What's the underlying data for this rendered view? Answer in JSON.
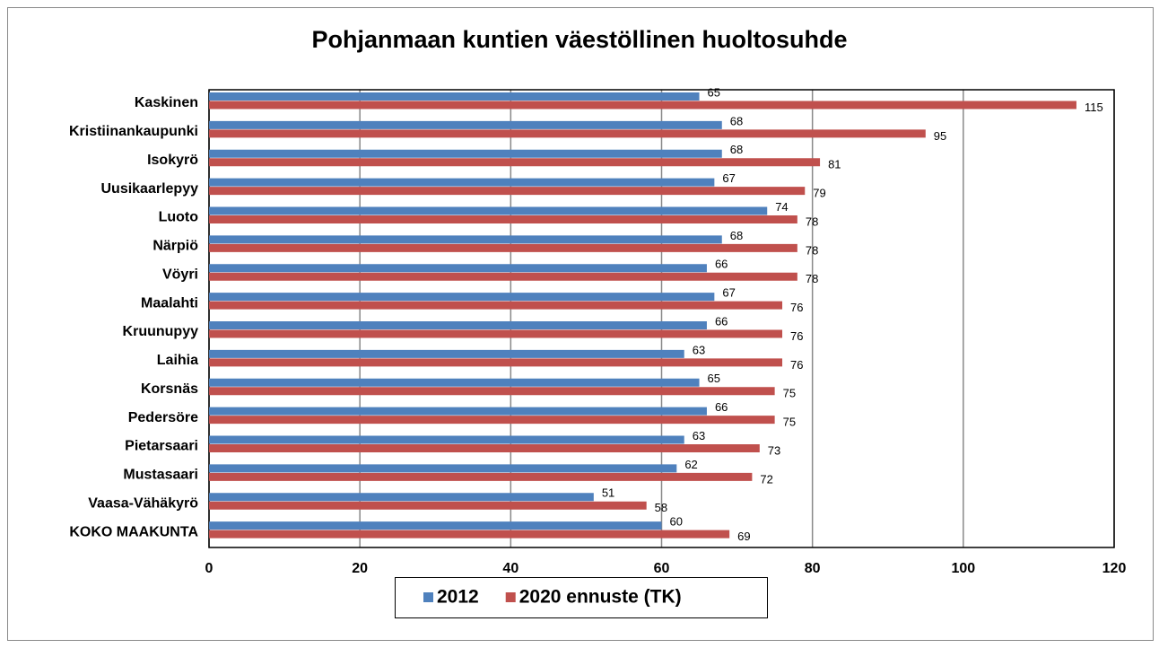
{
  "chart_data": {
    "type": "bar",
    "orientation": "horizontal",
    "title": "Pohjanmaan kuntien väestöllinen huoltosuhde",
    "categories": [
      "Kaskinen",
      "Kristiinankaupunki",
      "Isokyrö",
      "Uusikaarlepyy",
      "Luoto",
      "Närpiö",
      "Vöyri",
      "Maalahti",
      "Kruunupyy",
      "Laihia",
      "Korsnäs",
      "Pedersöre",
      "Pietarsaari",
      "Mustasaari",
      "Vaasa-Vähäkyrö",
      "KOKO MAAKUNTA"
    ],
    "series": [
      {
        "name": "2012",
        "color": "#4f81bd",
        "values": [
          65,
          68,
          68,
          67,
          74,
          68,
          66,
          67,
          66,
          63,
          65,
          66,
          63,
          62,
          51,
          60
        ]
      },
      {
        "name": "2020 ennuste (TK)",
        "color": "#c0504d",
        "values": [
          115,
          95,
          81,
          79,
          78,
          78,
          78,
          76,
          76,
          76,
          75,
          75,
          73,
          72,
          58,
          69
        ]
      }
    ],
    "xlim": [
      0,
      120
    ],
    "xticks": [
      0,
      20,
      40,
      60,
      80,
      100,
      120
    ],
    "grid": true,
    "legend": "bottom"
  }
}
